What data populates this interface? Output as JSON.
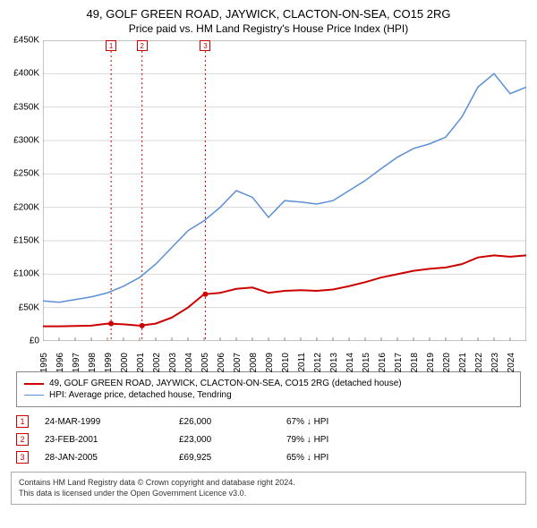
{
  "title": "49, GOLF GREEN ROAD, JAYWICK, CLACTON-ON-SEA, CO15 2RG",
  "subtitle": "Price paid vs. HM Land Registry's House Price Index (HPI)",
  "chart": {
    "type": "line",
    "background_color": "#ffffff",
    "grid_color": "#d9d9d9",
    "axis_color": "#888888",
    "text_color": "#000000",
    "xlim": [
      1995,
      2025
    ],
    "ylim": [
      0,
      450000
    ],
    "ytick_step": 50000,
    "ytick_prefix": "£",
    "ytick_suffix": "K",
    "ytick_divisor": 1000,
    "xticks": [
      1995,
      1996,
      1997,
      1998,
      1999,
      2000,
      2001,
      2002,
      2003,
      2004,
      2005,
      2006,
      2007,
      2008,
      2009,
      2010,
      2011,
      2012,
      2013,
      2014,
      2015,
      2016,
      2017,
      2018,
      2019,
      2020,
      2021,
      2022,
      2023,
      2024
    ],
    "series": [
      {
        "id": "price_paid",
        "label": "49, GOLF GREEN ROAD, JAYWICK, CLACTON-ON-SEA, CO15 2RG (detached house)",
        "color": "#cc0000",
        "line_width": 2,
        "points": [
          [
            1995,
            22000
          ],
          [
            1996,
            22000
          ],
          [
            1997,
            22500
          ],
          [
            1998,
            23000
          ],
          [
            1999,
            26000
          ],
          [
            2000,
            25000
          ],
          [
            2001,
            23000
          ],
          [
            2002,
            26000
          ],
          [
            2003,
            35000
          ],
          [
            2004,
            50000
          ],
          [
            2005,
            69925
          ],
          [
            2006,
            72000
          ],
          [
            2007,
            78000
          ],
          [
            2008,
            80000
          ],
          [
            2009,
            72000
          ],
          [
            2010,
            75000
          ],
          [
            2011,
            76000
          ],
          [
            2012,
            75000
          ],
          [
            2013,
            77000
          ],
          [
            2014,
            82000
          ],
          [
            2015,
            88000
          ],
          [
            2016,
            95000
          ],
          [
            2017,
            100000
          ],
          [
            2018,
            105000
          ],
          [
            2019,
            108000
          ],
          [
            2020,
            110000
          ],
          [
            2021,
            115000
          ],
          [
            2022,
            125000
          ],
          [
            2023,
            128000
          ],
          [
            2024,
            126000
          ],
          [
            2025,
            128000
          ]
        ],
        "dots": [
          [
            1999.23,
            26000
          ],
          [
            2001.15,
            23000
          ],
          [
            2005.08,
            69925
          ]
        ]
      },
      {
        "id": "hpi",
        "label": "HPI: Average price, detached house, Tendring",
        "color": "#5b8fd6",
        "line_width": 1.5,
        "points": [
          [
            1995,
            60000
          ],
          [
            1996,
            58000
          ],
          [
            1997,
            62000
          ],
          [
            1998,
            66000
          ],
          [
            1999,
            72000
          ],
          [
            2000,
            82000
          ],
          [
            2001,
            95000
          ],
          [
            2002,
            115000
          ],
          [
            2003,
            140000
          ],
          [
            2004,
            165000
          ],
          [
            2005,
            180000
          ],
          [
            2006,
            200000
          ],
          [
            2007,
            225000
          ],
          [
            2008,
            215000
          ],
          [
            2009,
            185000
          ],
          [
            2010,
            210000
          ],
          [
            2011,
            208000
          ],
          [
            2012,
            205000
          ],
          [
            2013,
            210000
          ],
          [
            2014,
            225000
          ],
          [
            2015,
            240000
          ],
          [
            2016,
            258000
          ],
          [
            2017,
            275000
          ],
          [
            2018,
            288000
          ],
          [
            2019,
            295000
          ],
          [
            2020,
            305000
          ],
          [
            2021,
            335000
          ],
          [
            2022,
            380000
          ],
          [
            2023,
            400000
          ],
          [
            2024,
            370000
          ],
          [
            2025,
            380000
          ]
        ]
      }
    ],
    "event_markers": [
      {
        "n": "1",
        "x": 1999.23,
        "color": "#cc0000"
      },
      {
        "n": "2",
        "x": 2001.15,
        "color": "#cc0000"
      },
      {
        "n": "3",
        "x": 2005.08,
        "color": "#cc0000"
      }
    ]
  },
  "legend": {
    "border_color": "#888888",
    "items": [
      {
        "color": "#cc0000",
        "width": 2,
        "label": "49, GOLF GREEN ROAD, JAYWICK, CLACTON-ON-SEA, CO15 2RG (detached house)"
      },
      {
        "color": "#5b8fd6",
        "width": 1.5,
        "label": "HPI: Average price, detached house, Tendring"
      }
    ]
  },
  "events": [
    {
      "n": "1",
      "color": "#cc0000",
      "date": "24-MAR-1999",
      "price": "£26,000",
      "hpi": "67% ↓ HPI"
    },
    {
      "n": "2",
      "color": "#cc0000",
      "date": "23-FEB-2001",
      "price": "£23,000",
      "hpi": "79% ↓ HPI"
    },
    {
      "n": "3",
      "color": "#cc0000",
      "date": "28-JAN-2005",
      "price": "£69,925",
      "hpi": "65% ↓ HPI"
    }
  ],
  "footer": {
    "line1": "Contains HM Land Registry data © Crown copyright and database right 2024.",
    "line2": "This data is licensed under the Open Government Licence v3.0."
  }
}
